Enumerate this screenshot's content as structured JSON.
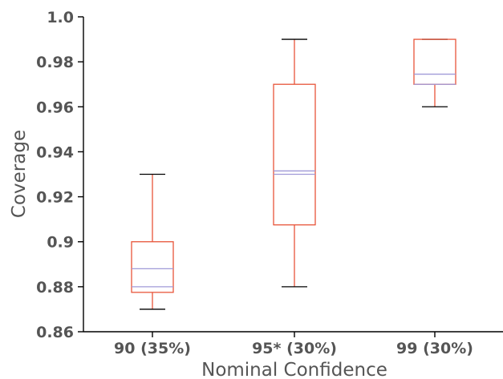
{
  "chart_data": {
    "type": "box",
    "xlabel": "Nominal Confidence",
    "ylabel": "Coverage",
    "ylim": [
      0.86,
      1.0
    ],
    "yticks": [
      0.86,
      0.88,
      0.9,
      0.92,
      0.94,
      0.96,
      0.98,
      1.0
    ],
    "ytick_labels": [
      "0.86",
      "0.88",
      "0.9",
      "0.92",
      "0.94",
      "0.96",
      "0.98",
      "1.0"
    ],
    "grid": false,
    "colors": {
      "box": "#e8553a",
      "whisker": "#e8553a",
      "cap": "#000000",
      "median": "#a09ad8",
      "mean": "#a09ad8",
      "axis": "#000000",
      "text": "#555555"
    },
    "boxes": [
      {
        "label": "90 (35%)",
        "whislo": 0.87,
        "q1": 0.8775,
        "med": 0.88,
        "mean": 0.888,
        "q3": 0.9,
        "whishi": 0.93
      },
      {
        "label": "95* (30%)",
        "whislo": 0.88,
        "q1": 0.9075,
        "med": 0.93,
        "mean": 0.9315,
        "q3": 0.97,
        "whishi": 0.99
      },
      {
        "label": "99 (30%)",
        "whislo": 0.96,
        "q1": 0.97,
        "med": 0.97,
        "mean": 0.9745,
        "q3": 0.99,
        "whishi": 0.99
      }
    ]
  }
}
